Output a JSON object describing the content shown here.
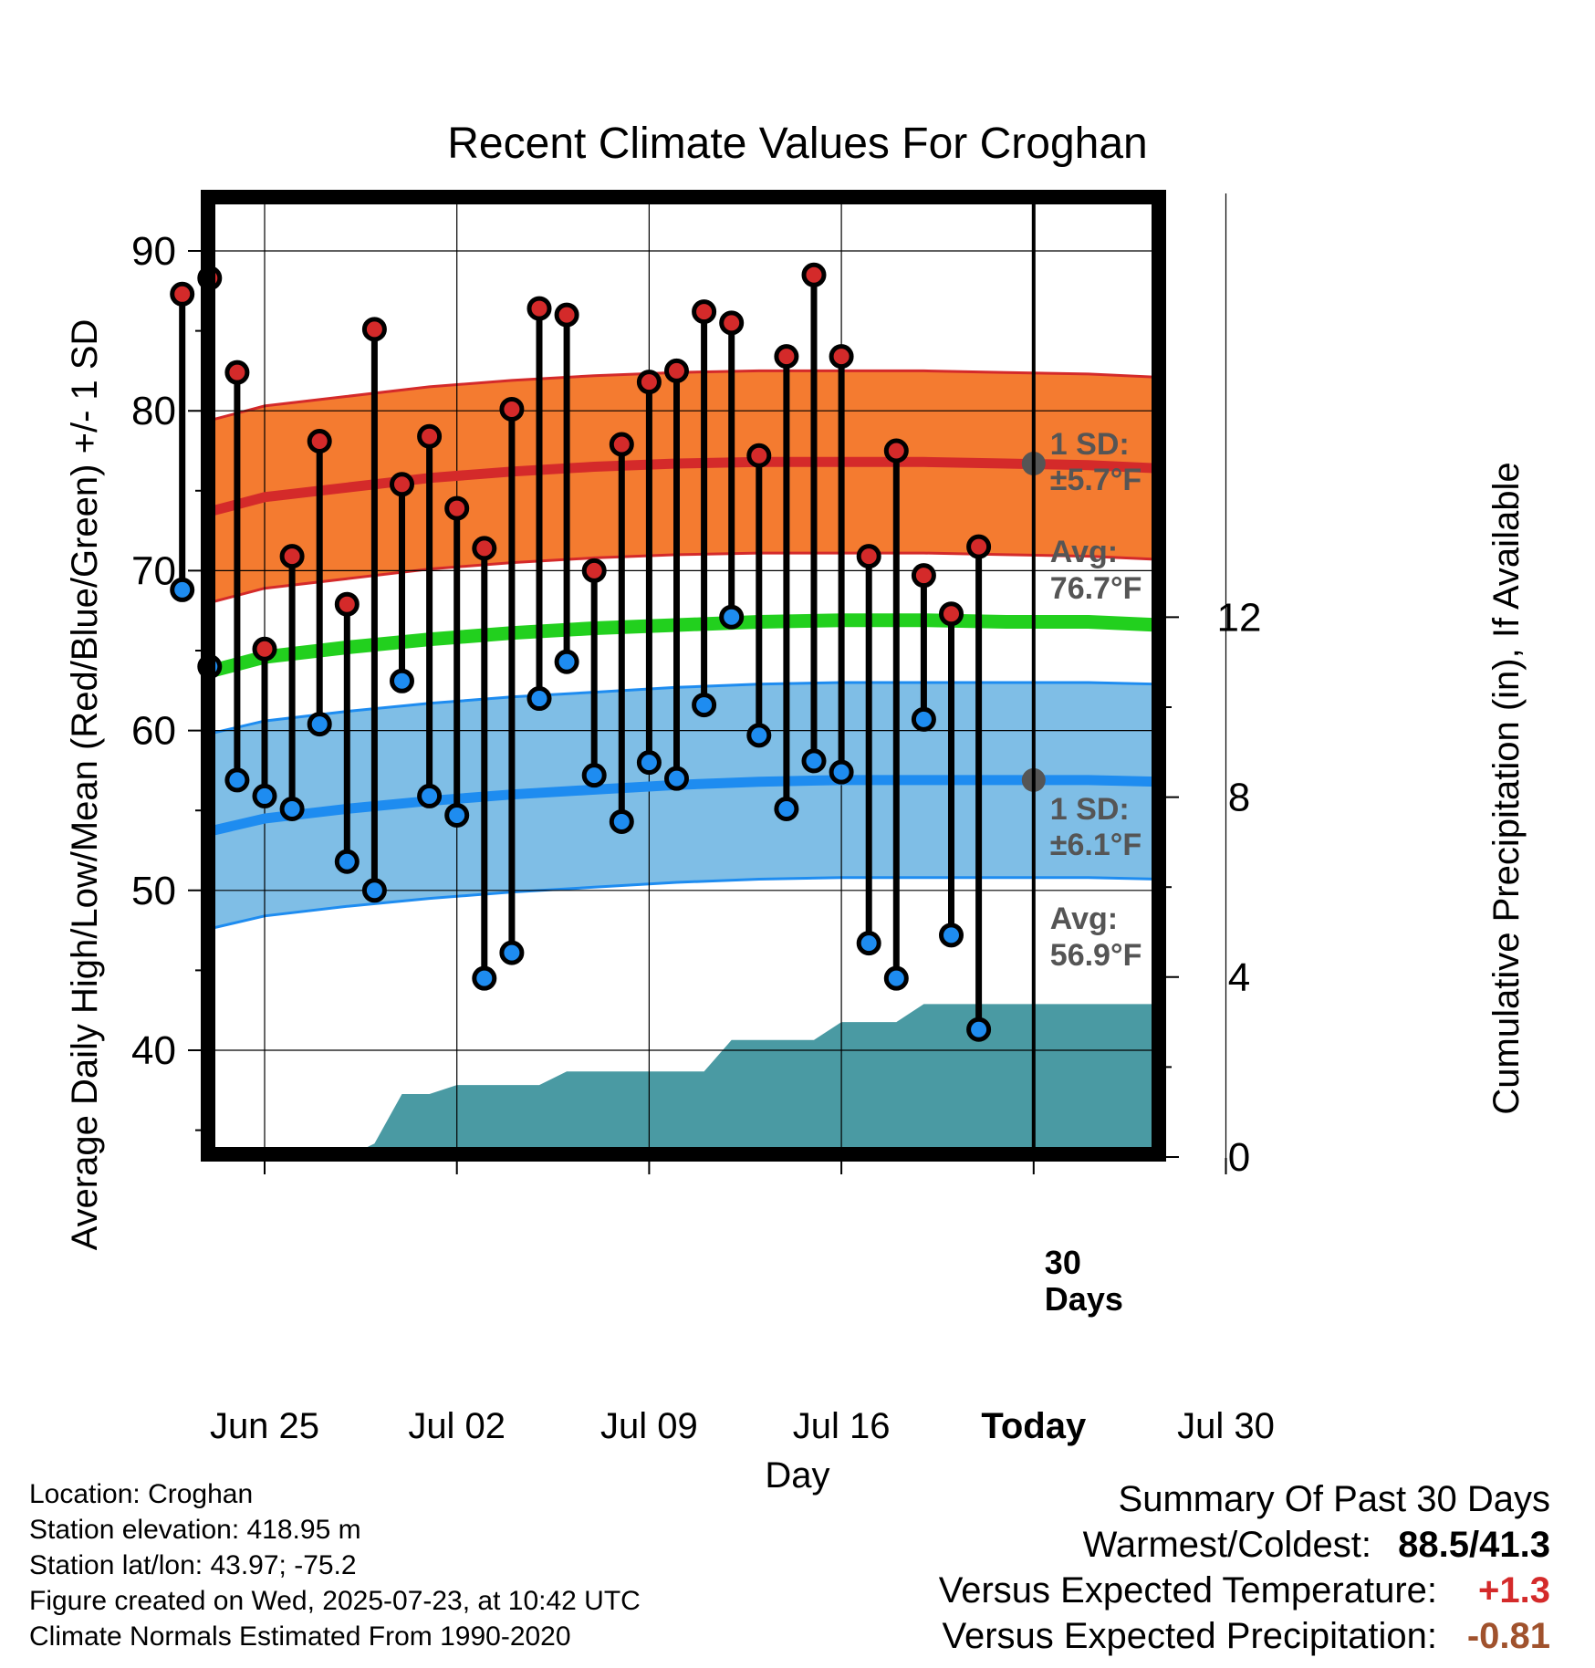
{
  "title": "Recent Climate Values For Croghan",
  "chart_data": {
    "type": "line",
    "xlabel": "Day",
    "ylabel_left": "Average Daily High/Low/Mean (Red/Blue/Green) +/- 1 SD",
    "ylabel_right": "Cumulative Precipitation (in), If Available",
    "ylim_left": [
      34,
      94
    ],
    "ylim_right": [
      0,
      25
    ],
    "y_ticks_left": [
      40,
      50,
      60,
      70,
      80,
      90
    ],
    "y_ticks_right": [
      0,
      4,
      8,
      12
    ],
    "x_tick_labels": [
      "Jun 25",
      "Jul 02",
      "Jul 09",
      "Jul 16",
      "Today",
      "Jul 30"
    ],
    "today_label": "30\nDays",
    "days": [
      "Jun 22",
      "Jun 23",
      "Jun 24",
      "Jun 25",
      "Jun 26",
      "Jun 27",
      "Jun 28",
      "Jun 29",
      "Jun 30",
      "Jul 01",
      "Jul 02",
      "Jul 03",
      "Jul 04",
      "Jul 05",
      "Jul 06",
      "Jul 07",
      "Jul 08",
      "Jul 09",
      "Jul 10",
      "Jul 11",
      "Jul 12",
      "Jul 13",
      "Jul 14",
      "Jul 15",
      "Jul 16",
      "Jul 17",
      "Jul 18",
      "Jul 19",
      "Jul 20",
      "Jul 21",
      "Jul 22"
    ],
    "observed_high": [
      87.3,
      88.3,
      82.4,
      65.1,
      70.9,
      78.1,
      67.9,
      85.1,
      75.4,
      78.4,
      73.9,
      71.4,
      80.1,
      86.4,
      86.0,
      70.0,
      77.9,
      81.8,
      82.5,
      86.2,
      85.5,
      77.2,
      83.4,
      88.5,
      83.4,
      70.9,
      77.5,
      69.7,
      67.3,
      71.5,
      null
    ],
    "observed_low": [
      68.8,
      64.0,
      56.9,
      55.9,
      55.1,
      60.4,
      51.8,
      50.0,
      63.1,
      55.9,
      54.7,
      44.5,
      46.1,
      62.0,
      64.3,
      57.2,
      54.3,
      58.0,
      57.0,
      61.6,
      67.1,
      59.7,
      55.1,
      58.1,
      57.4,
      46.7,
      44.5,
      60.7,
      47.2,
      41.3,
      null
    ],
    "normal_days": [
      "Jun 22",
      "Jun 25",
      "Jun 28",
      "Jul 01",
      "Jul 04",
      "Jul 07",
      "Jul 10",
      "Jul 13",
      "Jul 16",
      "Jul 19",
      "Jul 22",
      "Jul 25",
      "Jul 28",
      "Aug 01"
    ],
    "normal_high": [
      73.7,
      74.6,
      75.2,
      75.8,
      76.2,
      76.5,
      76.7,
      76.8,
      76.8,
      76.8,
      76.7,
      76.6,
      76.4,
      76.1
    ],
    "normal_low": [
      53.7,
      54.5,
      55.1,
      55.6,
      56.0,
      56.3,
      56.6,
      56.8,
      56.9,
      56.9,
      56.9,
      56.9,
      56.8,
      56.5
    ],
    "normal_mean": [
      63.7,
      64.6,
      65.2,
      65.7,
      66.1,
      66.4,
      66.6,
      66.8,
      66.9,
      66.9,
      66.8,
      66.8,
      66.6,
      66.3
    ],
    "sd_high": 5.7,
    "sd_low": 6.1,
    "cumulative_precip": [
      0,
      0,
      0,
      0,
      0,
      0,
      0,
      0.3,
      1.4,
      1.4,
      1.6,
      1.6,
      1.6,
      1.6,
      1.9,
      1.9,
      1.9,
      1.9,
      1.9,
      1.9,
      2.6,
      2.6,
      2.6,
      2.6,
      3.0,
      3.0,
      3.0,
      3.4,
      3.4,
      3.4,
      3.4
    ],
    "annotations": {
      "high_sd_label_1": "1 SD:",
      "high_sd_label_2": "±5.7°F",
      "high_avg_label_1": "Avg:",
      "high_avg_label_2": "76.7°F",
      "low_sd_label_1": "1 SD:",
      "low_sd_label_2": "±6.1°F",
      "low_avg_label_1": "Avg:",
      "low_avg_label_2": "56.9°F"
    },
    "colors": {
      "high_band": "#f47b30",
      "high_line": "#d42a2a",
      "low_band": "#7fbee6",
      "low_line": "#1e8cf0",
      "mean_line": "#22d01e",
      "precip": "#4a9aa3",
      "high_dot": "#d42a2a",
      "low_dot": "#1e8cf0",
      "annotation": "#555555"
    }
  },
  "footer": {
    "location": "Location: Croghan",
    "elevation": "Station elevation: 418.95 m",
    "latlon": "Station lat/lon: 43.97; -75.2",
    "created": "Figure created on Wed, 2025-07-23, at 10:42 UTC",
    "normals": "Climate Normals Estimated From 1990-2020"
  },
  "summary": {
    "heading": "Summary Of Past 30 Days",
    "warm_cold_label": "Warmest/Coldest:",
    "warm_cold_value": "88.5/41.3",
    "temp_label": "Versus Expected Temperature:",
    "temp_value": "+1.3",
    "temp_color": "#d42a2a",
    "precip_label": "Versus Expected Precipitation:",
    "precip_value": "-0.81",
    "precip_color": "#a0522d"
  }
}
